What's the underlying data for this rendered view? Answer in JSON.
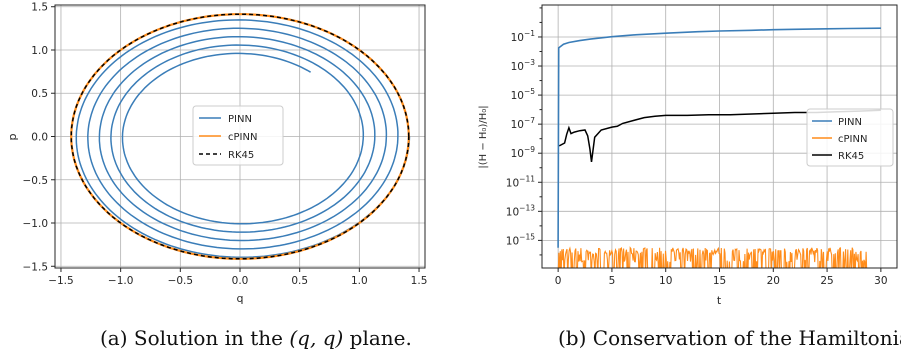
{
  "captions": {
    "left": {
      "prefix": "(a) Solution in the ",
      "math": "(q, q)",
      "suffix": " plane."
    },
    "right": {
      "text": "(b) Conservation of the Hamiltonian."
    }
  },
  "colors": {
    "pinn": "#3a7db8",
    "cpinn": "#ff8c1a",
    "rk45": "#000000"
  },
  "chart_data": [
    {
      "type": "line",
      "title": "",
      "xlabel": "q",
      "ylabel": "p",
      "xlim": [
        -1.55,
        1.55
      ],
      "ylim": [
        -1.52,
        1.52
      ],
      "xticks": [
        -1.5,
        -1.0,
        -0.5,
        0.0,
        0.5,
        1.0,
        1.5
      ],
      "xticklabels": [
        "−1.5",
        "−1.0",
        "−0.5",
        "0.0",
        "0.5",
        "1.0",
        "1.5"
      ],
      "yticks": [
        -1.5,
        -1.0,
        -0.5,
        0.0,
        0.5,
        1.0,
        1.5
      ],
      "yticklabels": [
        "−1.5",
        "−1.0",
        "−0.5",
        "0.0",
        "0.5",
        "1.0",
        "1.5"
      ],
      "grid": true,
      "legend": {
        "location": "center",
        "entries": [
          "PINN",
          "cPINN",
          "RK45"
        ]
      },
      "series": [
        {
          "name": "PINN",
          "kind": "inward spiral",
          "q_start": 1.42,
          "p_start": 0.0,
          "radius_end": 0.95,
          "q_end": 0.62,
          "p_end": 0.78,
          "turns": 4.8
        },
        {
          "name": "cPINN",
          "kind": "circle",
          "radius": 1.414
        },
        {
          "name": "RK45",
          "kind": "circle",
          "radius": 1.414,
          "style": "dashed"
        }
      ]
    },
    {
      "type": "line",
      "title": "",
      "xlabel": "t",
      "ylabel": "|(H − H₀)/H₀|",
      "yscale": "log",
      "xlim": [
        -1.5,
        31.5
      ],
      "ylim_exponent": [
        -16.9,
        1.2
      ],
      "xticks": [
        0,
        5,
        10,
        15,
        20,
        25,
        30
      ],
      "xticklabels": [
        "0",
        "5",
        "10",
        "15",
        "20",
        "25",
        "30"
      ],
      "yticks_exponent": [
        -15,
        -13,
        -11,
        -9,
        -7,
        -5,
        -3,
        -1
      ],
      "yticklabel_base": "10",
      "yticklabel_exponents": [
        "−15",
        "−13",
        "−11",
        "−9",
        "−7",
        "−5",
        "−3",
        "−1"
      ],
      "grid": true,
      "legend": {
        "location": "center right",
        "entries": [
          "PINN",
          "cPINN",
          "RK45"
        ]
      },
      "series": [
        {
          "name": "PINN",
          "t": [
            0,
            0.05,
            0.5,
            1,
            2,
            3,
            5,
            7,
            10,
            13,
            15,
            18,
            20,
            22,
            25,
            27,
            30
          ],
          "log10_value": [
            -15.5,
            -1.75,
            -1.5,
            -1.38,
            -1.25,
            -1.15,
            -0.98,
            -0.86,
            -0.74,
            -0.64,
            -0.59,
            -0.54,
            -0.5,
            -0.47,
            -0.44,
            -0.42,
            -0.4
          ]
        },
        {
          "name": "cPINN",
          "kind": "spiky noise near the precision floor",
          "floor_log10": -16.5,
          "spike_log10_range": [
            -16.0,
            -15.5
          ],
          "t_range": [
            0,
            28.7
          ]
        },
        {
          "name": "RK45",
          "t": [
            0.1,
            0.6,
            0.8,
            1.0,
            1.2,
            1.5,
            2.0,
            2.5,
            2.75,
            2.95,
            3.1,
            3.4,
            4.0,
            5.0,
            5.5,
            6.0,
            7.0,
            8.0,
            9.0,
            10.0,
            12.0,
            14.0,
            16.0,
            18.0,
            20.0,
            22.0,
            24.0,
            26.0,
            28.0,
            30.0
          ],
          "log10_value": [
            -8.5,
            -8.3,
            -7.7,
            -7.25,
            -7.65,
            -7.55,
            -7.45,
            -7.4,
            -7.8,
            -8.7,
            -9.6,
            -7.9,
            -7.4,
            -7.2,
            -7.15,
            -6.95,
            -6.75,
            -6.55,
            -6.45,
            -6.4,
            -6.4,
            -6.35,
            -6.35,
            -6.3,
            -6.25,
            -6.2,
            -6.2,
            -6.15,
            -6.1,
            -6.05
          ]
        }
      ]
    }
  ]
}
